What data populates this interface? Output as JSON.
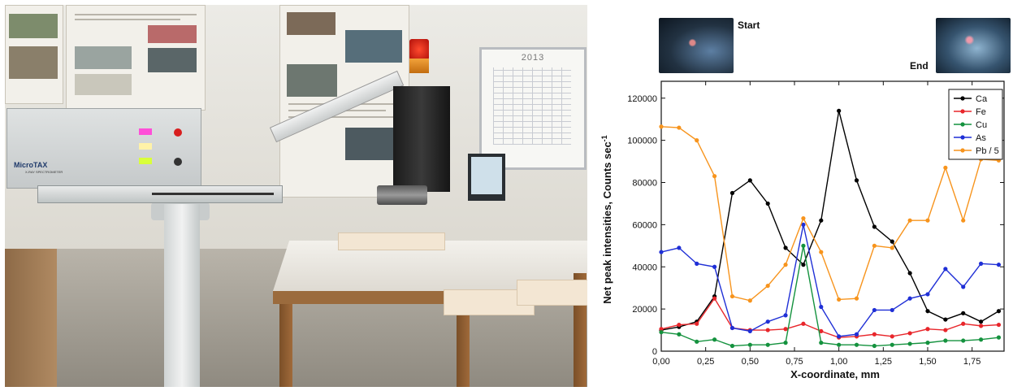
{
  "photo": {
    "device_brand": "MicroTAX",
    "device_sub": "X-RAY SPECTROMETER",
    "whiteboard_year": "2013"
  },
  "thumbs": {
    "start_label": "Start",
    "end_label": "End"
  },
  "chart_data": {
    "type": "line",
    "title": "",
    "xlabel": "X-coordinate, mm",
    "ylabel": "Net peak intensities, Counts sec",
    "ylabel_superscript": "-1",
    "xlim": [
      0,
      1.93
    ],
    "ylim": [
      0,
      128000
    ],
    "x_ticks": [
      "0,00",
      "0,25",
      "0,50",
      "0,75",
      "1,00",
      "1,25",
      "1,50",
      "1,75"
    ],
    "y_ticks": [
      "0",
      "20000",
      "40000",
      "60000",
      "80000",
      "100000",
      "120000"
    ],
    "legend_position": "top-right",
    "grid": false,
    "x": [
      0.0,
      0.1,
      0.2,
      0.3,
      0.4,
      0.5,
      0.6,
      0.7,
      0.8,
      0.9,
      1.0,
      1.1,
      1.2,
      1.3,
      1.4,
      1.5,
      1.6,
      1.7,
      1.8,
      1.9
    ],
    "series": [
      {
        "name": "Ca",
        "color": "#000000",
        "values": [
          10000,
          11500,
          14000,
          26000,
          75000,
          81000,
          70000,
          49000,
          41000,
          62000,
          114000,
          81000,
          59000,
          52000,
          37000,
          19000,
          15000,
          18000,
          14000,
          19000
        ]
      },
      {
        "name": "Fe",
        "color": "#e8262b",
        "values": [
          10500,
          12500,
          13000,
          25000,
          11000,
          10000,
          10000,
          10500,
          13000,
          9500,
          6500,
          7000,
          8000,
          7000,
          8500,
          10500,
          10000,
          13000,
          12000,
          12500
        ]
      },
      {
        "name": "Cu",
        "color": "#14923e",
        "values": [
          9000,
          8000,
          4500,
          5500,
          2500,
          3000,
          3000,
          4000,
          50000,
          4000,
          3000,
          3000,
          2500,
          3000,
          3500,
          4000,
          5000,
          5000,
          5500,
          6500
        ]
      },
      {
        "name": "As",
        "color": "#1f2fd6",
        "values": [
          47000,
          49000,
          41500,
          40000,
          11000,
          9500,
          14000,
          17000,
          60000,
          21000,
          7000,
          8000,
          19500,
          19500,
          25000,
          27000,
          39000,
          30500,
          41500,
          41000
        ]
      },
      {
        "name": "Pb / 5",
        "color": "#f7941d",
        "values": [
          106500,
          106000,
          100000,
          83000,
          26000,
          24000,
          31000,
          41000,
          63000,
          47000,
          24500,
          25000,
          50000,
          49000,
          62000,
          62000,
          87000,
          62000,
          91000,
          90500
        ]
      }
    ]
  }
}
